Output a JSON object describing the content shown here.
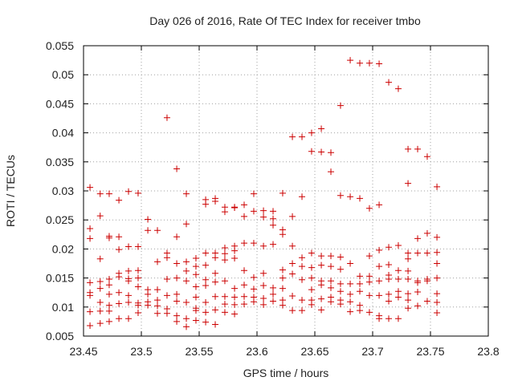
{
  "chart_data": {
    "type": "scatter",
    "title": "Day 026 of 2016, Rate Of TEC Index for receiver tmbo",
    "xlabel": "GPS time / hours",
    "ylabel": "ROTI / TECUs",
    "xlim": [
      23.45,
      23.8
    ],
    "ylim": [
      0.005,
      0.055
    ],
    "xticks": [
      "23.45",
      "23.5",
      "23.55",
      "23.6",
      "23.65",
      "23.7",
      "23.75",
      "23.8"
    ],
    "yticks": [
      "0.005",
      "0.01",
      "0.015",
      "0.02",
      "0.025",
      "0.03",
      "0.035",
      "0.04",
      "0.045",
      "0.05",
      "0.055"
    ],
    "grid": true,
    "marker": "+",
    "color": "#cc0000",
    "series": [
      {
        "name": "ROTI",
        "points": [
          [
            23.4556,
            0.0306
          ],
          [
            23.4556,
            0.0235
          ],
          [
            23.4556,
            0.0218
          ],
          [
            23.4556,
            0.0142
          ],
          [
            23.4556,
            0.0125
          ],
          [
            23.4556,
            0.012
          ],
          [
            23.4556,
            0.0092
          ],
          [
            23.4556,
            0.0068
          ],
          [
            23.4644,
            0.0295
          ],
          [
            23.4644,
            0.0257
          ],
          [
            23.4644,
            0.0183
          ],
          [
            23.4644,
            0.0144
          ],
          [
            23.4644,
            0.0132
          ],
          [
            23.4644,
            0.0108
          ],
          [
            23.4644,
            0.0093
          ],
          [
            23.4644,
            0.0072
          ],
          [
            23.4722,
            0.0295
          ],
          [
            23.4722,
            0.0222
          ],
          [
            23.4722,
            0.0219
          ],
          [
            23.4722,
            0.0148
          ],
          [
            23.4722,
            0.0138
          ],
          [
            23.4722,
            0.0122
          ],
          [
            23.4722,
            0.0103
          ],
          [
            23.4722,
            0.0093
          ],
          [
            23.4722,
            0.0075
          ],
          [
            23.4806,
            0.0284
          ],
          [
            23.4806,
            0.0221
          ],
          [
            23.4806,
            0.0199
          ],
          [
            23.4806,
            0.0158
          ],
          [
            23.4806,
            0.0152
          ],
          [
            23.4806,
            0.0125
          ],
          [
            23.4806,
            0.0106
          ],
          [
            23.4806,
            0.008
          ],
          [
            23.4889,
            0.0299
          ],
          [
            23.4889,
            0.0204
          ],
          [
            23.4889,
            0.0162
          ],
          [
            23.4889,
            0.0149
          ],
          [
            23.4889,
            0.0145
          ],
          [
            23.4889,
            0.012
          ],
          [
            23.4889,
            0.0108
          ],
          [
            23.4889,
            0.008
          ],
          [
            23.4972,
            0.0296
          ],
          [
            23.4972,
            0.0204
          ],
          [
            23.4972,
            0.0163
          ],
          [
            23.4972,
            0.015
          ],
          [
            23.4972,
            0.0135
          ],
          [
            23.4972,
            0.0107
          ],
          [
            23.4972,
            0.0103
          ],
          [
            23.4972,
            0.009
          ],
          [
            23.5056,
            0.0251
          ],
          [
            23.5056,
            0.0232
          ],
          [
            23.5056,
            0.013
          ],
          [
            23.5056,
            0.0122
          ],
          [
            23.5056,
            0.0109
          ],
          [
            23.5056,
            0.0103
          ],
          [
            23.5139,
            0.0232
          ],
          [
            23.5139,
            0.0178
          ],
          [
            23.5139,
            0.013
          ],
          [
            23.5139,
            0.0112
          ],
          [
            23.5139,
            0.0102
          ],
          [
            23.5139,
            0.0089
          ],
          [
            23.5222,
            0.0426
          ],
          [
            23.5222,
            0.0193
          ],
          [
            23.5222,
            0.0185
          ],
          [
            23.5222,
            0.0148
          ],
          [
            23.5222,
            0.012
          ],
          [
            23.5222,
            0.0097
          ],
          [
            23.5222,
            0.0089
          ],
          [
            23.5306,
            0.0338
          ],
          [
            23.5306,
            0.0221
          ],
          [
            23.5306,
            0.0175
          ],
          [
            23.5306,
            0.015
          ],
          [
            23.5306,
            0.0122
          ],
          [
            23.5306,
            0.011
          ],
          [
            23.5306,
            0.0085
          ],
          [
            23.5306,
            0.0075
          ],
          [
            23.5389,
            0.0295
          ],
          [
            23.5389,
            0.0243
          ],
          [
            23.5389,
            0.0178
          ],
          [
            23.5389,
            0.0162
          ],
          [
            23.5389,
            0.0145
          ],
          [
            23.5389,
            0.0108
          ],
          [
            23.5389,
            0.008
          ],
          [
            23.5389,
            0.0066
          ],
          [
            23.5472,
            0.0184
          ],
          [
            23.5472,
            0.017
          ],
          [
            23.5472,
            0.0156
          ],
          [
            23.5472,
            0.0135
          ],
          [
            23.5472,
            0.0117
          ],
          [
            23.5472,
            0.0098
          ],
          [
            23.5472,
            0.0094
          ],
          [
            23.5472,
            0.0077
          ],
          [
            23.5556,
            0.0285
          ],
          [
            23.5556,
            0.0277
          ],
          [
            23.5556,
            0.0193
          ],
          [
            23.5556,
            0.0172
          ],
          [
            23.5556,
            0.0147
          ],
          [
            23.5556,
            0.0137
          ],
          [
            23.5556,
            0.0108
          ],
          [
            23.5556,
            0.0091
          ],
          [
            23.5556,
            0.0074
          ],
          [
            23.5639,
            0.0287
          ],
          [
            23.5639,
            0.0282
          ],
          [
            23.5639,
            0.0193
          ],
          [
            23.5639,
            0.0185
          ],
          [
            23.5639,
            0.0158
          ],
          [
            23.5639,
            0.0143
          ],
          [
            23.5639,
            0.0118
          ],
          [
            23.5639,
            0.0095
          ],
          [
            23.5639,
            0.007
          ],
          [
            23.5722,
            0.0272
          ],
          [
            23.5722,
            0.0264
          ],
          [
            23.5722,
            0.0202
          ],
          [
            23.5722,
            0.0192
          ],
          [
            23.5722,
            0.0181
          ],
          [
            23.5722,
            0.0145
          ],
          [
            23.5722,
            0.0118
          ],
          [
            23.5722,
            0.0105
          ],
          [
            23.5722,
            0.0091
          ],
          [
            23.5806,
            0.0272
          ],
          [
            23.5806,
            0.0271
          ],
          [
            23.5806,
            0.0205
          ],
          [
            23.5806,
            0.0197
          ],
          [
            23.5806,
            0.0184
          ],
          [
            23.5806,
            0.0132
          ],
          [
            23.5806,
            0.0117
          ],
          [
            23.5806,
            0.0104
          ],
          [
            23.5806,
            0.0088
          ],
          [
            23.5889,
            0.0276
          ],
          [
            23.5889,
            0.0256
          ],
          [
            23.5889,
            0.021
          ],
          [
            23.5889,
            0.0163
          ],
          [
            23.5889,
            0.0138
          ],
          [
            23.5889,
            0.0118
          ],
          [
            23.5889,
            0.0105
          ],
          [
            23.5972,
            0.0295
          ],
          [
            23.5972,
            0.0265
          ],
          [
            23.5972,
            0.021
          ],
          [
            23.5972,
            0.0151
          ],
          [
            23.5972,
            0.0131
          ],
          [
            23.5972,
            0.0117
          ],
          [
            23.5972,
            0.0109
          ],
          [
            23.6056,
            0.0266
          ],
          [
            23.6056,
            0.0255
          ],
          [
            23.6056,
            0.0205
          ],
          [
            23.6056,
            0.0158
          ],
          [
            23.6056,
            0.0137
          ],
          [
            23.6056,
            0.0115
          ],
          [
            23.6056,
            0.0104
          ],
          [
            23.6139,
            0.0265
          ],
          [
            23.6139,
            0.0252
          ],
          [
            23.6139,
            0.0241
          ],
          [
            23.6139,
            0.0208
          ],
          [
            23.6139,
            0.0133
          ],
          [
            23.6139,
            0.0122
          ],
          [
            23.6139,
            0.011
          ],
          [
            23.6222,
            0.0296
          ],
          [
            23.6222,
            0.0233
          ],
          [
            23.6222,
            0.0225
          ],
          [
            23.6222,
            0.0164
          ],
          [
            23.6222,
            0.015
          ],
          [
            23.6222,
            0.0132
          ],
          [
            23.6222,
            0.0112
          ],
          [
            23.6222,
            0.0103
          ],
          [
            23.6306,
            0.0393
          ],
          [
            23.6306,
            0.0256
          ],
          [
            23.6306,
            0.0205
          ],
          [
            23.6306,
            0.0175
          ],
          [
            23.6306,
            0.0157
          ],
          [
            23.6306,
            0.0119
          ],
          [
            23.6306,
            0.0094
          ],
          [
            23.6389,
            0.0393
          ],
          [
            23.6389,
            0.029
          ],
          [
            23.6389,
            0.0185
          ],
          [
            23.6389,
            0.017
          ],
          [
            23.6389,
            0.0147
          ],
          [
            23.6389,
            0.0112
          ],
          [
            23.6389,
            0.0094
          ],
          [
            23.6472,
            0.04
          ],
          [
            23.6472,
            0.0368
          ],
          [
            23.6472,
            0.0193
          ],
          [
            23.6472,
            0.0168
          ],
          [
            23.6472,
            0.015
          ],
          [
            23.6472,
            0.013
          ],
          [
            23.6472,
            0.0112
          ],
          [
            23.6472,
            0.0104
          ],
          [
            23.6556,
            0.0407
          ],
          [
            23.6556,
            0.0367
          ],
          [
            23.6556,
            0.0188
          ],
          [
            23.6556,
            0.0172
          ],
          [
            23.6556,
            0.0145
          ],
          [
            23.6556,
            0.0138
          ],
          [
            23.6556,
            0.0114
          ],
          [
            23.6556,
            0.0095
          ],
          [
            23.6639,
            0.0366
          ],
          [
            23.6639,
            0.0333
          ],
          [
            23.6639,
            0.0188
          ],
          [
            23.6639,
            0.017
          ],
          [
            23.6639,
            0.0145
          ],
          [
            23.6639,
            0.0133
          ],
          [
            23.6639,
            0.0117
          ],
          [
            23.6639,
            0.0109
          ],
          [
            23.6722,
            0.0447
          ],
          [
            23.6722,
            0.0292
          ],
          [
            23.6722,
            0.0186
          ],
          [
            23.6722,
            0.0165
          ],
          [
            23.6722,
            0.014
          ],
          [
            23.6722,
            0.0127
          ],
          [
            23.6722,
            0.0112
          ],
          [
            23.6722,
            0.0105
          ],
          [
            23.6806,
            0.0525
          ],
          [
            23.6806,
            0.029
          ],
          [
            23.6806,
            0.0175
          ],
          [
            23.6806,
            0.014
          ],
          [
            23.6806,
            0.0122
          ],
          [
            23.6806,
            0.0109
          ],
          [
            23.6806,
            0.0092
          ],
          [
            23.6889,
            0.052
          ],
          [
            23.6889,
            0.0287
          ],
          [
            23.6889,
            0.0153
          ],
          [
            23.6889,
            0.014
          ],
          [
            23.6889,
            0.0127
          ],
          [
            23.6889,
            0.0103
          ],
          [
            23.6889,
            0.0094
          ],
          [
            23.6972,
            0.052
          ],
          [
            23.6972,
            0.027
          ],
          [
            23.6972,
            0.0188
          ],
          [
            23.6972,
            0.0153
          ],
          [
            23.6972,
            0.0143
          ],
          [
            23.6972,
            0.012
          ],
          [
            23.6972,
            0.0091
          ],
          [
            23.7056,
            0.0519
          ],
          [
            23.7056,
            0.0276
          ],
          [
            23.7056,
            0.0198
          ],
          [
            23.7056,
            0.017
          ],
          [
            23.7056,
            0.0145
          ],
          [
            23.7056,
            0.012
          ],
          [
            23.7056,
            0.0085
          ],
          [
            23.7056,
            0.008
          ],
          [
            23.7139,
            0.0487
          ],
          [
            23.7139,
            0.0203
          ],
          [
            23.7139,
            0.0173
          ],
          [
            23.7139,
            0.0155
          ],
          [
            23.7139,
            0.0148
          ],
          [
            23.7139,
            0.0122
          ],
          [
            23.7139,
            0.011
          ],
          [
            23.7139,
            0.008
          ],
          [
            23.7222,
            0.0476
          ],
          [
            23.7222,
            0.0206
          ],
          [
            23.7222,
            0.0163
          ],
          [
            23.7222,
            0.0148
          ],
          [
            23.7222,
            0.0127
          ],
          [
            23.7222,
            0.0117
          ],
          [
            23.7222,
            0.008
          ],
          [
            23.7306,
            0.0372
          ],
          [
            23.7306,
            0.0313
          ],
          [
            23.7306,
            0.0193
          ],
          [
            23.7306,
            0.0183
          ],
          [
            23.7306,
            0.0162
          ],
          [
            23.7306,
            0.0148
          ],
          [
            23.7306,
            0.0123
          ],
          [
            23.7306,
            0.0112
          ],
          [
            23.7306,
            0.0098
          ],
          [
            23.7389,
            0.0372
          ],
          [
            23.7389,
            0.0218
          ],
          [
            23.7389,
            0.0193
          ],
          [
            23.7389,
            0.0145
          ],
          [
            23.7389,
            0.0142
          ],
          [
            23.7389,
            0.0126
          ],
          [
            23.7389,
            0.0102
          ],
          [
            23.7472,
            0.0359
          ],
          [
            23.7472,
            0.0227
          ],
          [
            23.7472,
            0.0193
          ],
          [
            23.7472,
            0.0148
          ],
          [
            23.7472,
            0.0145
          ],
          [
            23.7472,
            0.011
          ],
          [
            23.7556,
            0.0307
          ],
          [
            23.7556,
            0.022
          ],
          [
            23.7556,
            0.0194
          ],
          [
            23.7556,
            0.0175
          ],
          [
            23.7556,
            0.015
          ],
          [
            23.7556,
            0.0123
          ],
          [
            23.7556,
            0.0108
          ],
          [
            23.7556,
            0.009
          ]
        ]
      }
    ]
  }
}
